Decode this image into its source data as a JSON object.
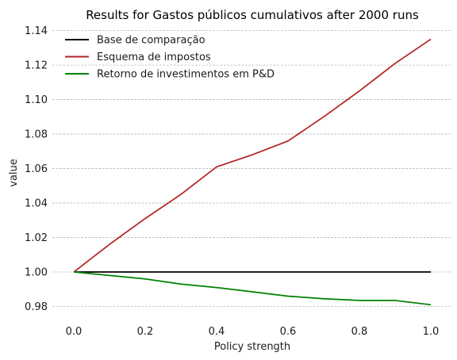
{
  "chart_data": {
    "type": "line",
    "title": "Results for Gastos públicos cumulativos after 2000 runs",
    "xlabel": "Policy strength",
    "ylabel": "value",
    "xlim": [
      -0.06,
      1.06
    ],
    "ylim": [
      0.9715,
      1.1435
    ],
    "x_ticks": [
      0.0,
      0.2,
      0.4,
      0.6,
      0.8,
      1.0
    ],
    "x_tick_labels": [
      "0.0",
      "0.2",
      "0.4",
      "0.6",
      "0.8",
      "1.0"
    ],
    "y_ticks": [
      0.98,
      1.0,
      1.02,
      1.04,
      1.06,
      1.08,
      1.1,
      1.12,
      1.14
    ],
    "y_tick_labels": [
      "0.98",
      "1.00",
      "1.02",
      "1.04",
      "1.06",
      "1.08",
      "1.10",
      "1.12",
      "1.14"
    ],
    "grid": "horizontal dashed",
    "legend_position": "upper-left",
    "x": [
      0.0,
      0.1,
      0.2,
      0.3,
      0.4,
      0.5,
      0.6,
      0.7,
      0.8,
      0.9,
      1.0
    ],
    "series": [
      {
        "name": "Base de comparação",
        "color": "#000000",
        "values": [
          1.0,
          1.0,
          1.0,
          1.0,
          1.0,
          1.0,
          1.0,
          1.0,
          1.0,
          1.0,
          1.0
        ]
      },
      {
        "name": "Esquema de impostos",
        "color": "#b22222",
        "values": [
          1.0,
          1.016,
          1.031,
          1.045,
          1.061,
          1.068,
          1.076,
          1.09,
          1.105,
          1.121,
          1.135
        ]
      },
      {
        "name": "Retorno de investimentos em P&D",
        "color": "#008000",
        "values": [
          1.0,
          0.998,
          0.996,
          0.993,
          0.991,
          0.9885,
          0.986,
          0.9845,
          0.9835,
          0.9835,
          0.981
        ]
      }
    ]
  }
}
